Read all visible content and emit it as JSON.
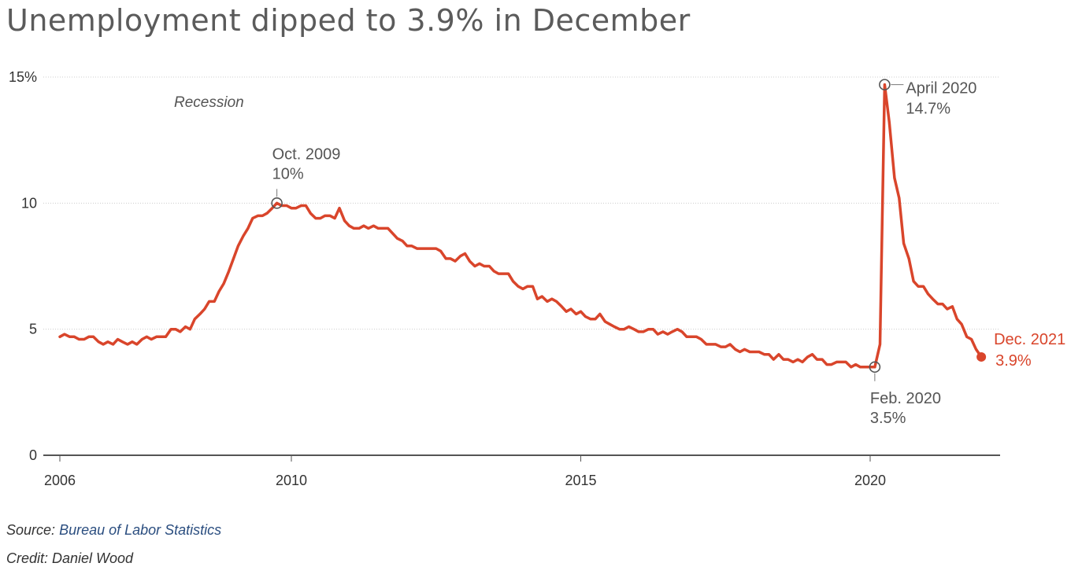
{
  "header": {
    "title": "Unemployment dipped to 3.9% in December"
  },
  "footer": {
    "source_label": "Source:",
    "source_name": "Bureau of Labor Statistics",
    "credit_text": "Credit: Daniel Wood"
  },
  "chart_data": {
    "type": "line",
    "title": "Unemployment dipped to 3.9% in December",
    "xlabel": "",
    "ylabel": "",
    "ylim": [
      0,
      15
    ],
    "xlim": [
      2006,
      2022
    ],
    "y_ticks": [
      {
        "value": 0,
        "label": "0"
      },
      {
        "value": 5,
        "label": "5"
      },
      {
        "value": 10,
        "label": "10"
      },
      {
        "value": 15,
        "label": "15%"
      }
    ],
    "x_ticks": [
      {
        "value": 2006,
        "label": "2006"
      },
      {
        "value": 2010,
        "label": "2010"
      },
      {
        "value": 2015,
        "label": "2015"
      },
      {
        "value": 2020,
        "label": "2020"
      }
    ],
    "grid": true,
    "line_color": "#d9452b",
    "recession_label": "Recession",
    "series": [
      {
        "points": [
          [
            2006.0,
            4.7
          ],
          [
            2006.08,
            4.8
          ],
          [
            2006.17,
            4.7
          ],
          [
            2006.25,
            4.7
          ],
          [
            2006.33,
            4.6
          ],
          [
            2006.42,
            4.6
          ],
          [
            2006.5,
            4.7
          ],
          [
            2006.58,
            4.7
          ],
          [
            2006.67,
            4.5
          ],
          [
            2006.75,
            4.4
          ],
          [
            2006.83,
            4.5
          ],
          [
            2006.92,
            4.4
          ],
          [
            2007.0,
            4.6
          ],
          [
            2007.08,
            4.5
          ],
          [
            2007.17,
            4.4
          ],
          [
            2007.25,
            4.5
          ],
          [
            2007.33,
            4.4
          ],
          [
            2007.42,
            4.6
          ],
          [
            2007.5,
            4.7
          ],
          [
            2007.58,
            4.6
          ],
          [
            2007.67,
            4.7
          ],
          [
            2007.75,
            4.7
          ],
          [
            2007.83,
            4.7
          ],
          [
            2007.92,
            5.0
          ],
          [
            2008.0,
            5.0
          ],
          [
            2008.08,
            4.9
          ],
          [
            2008.17,
            5.1
          ],
          [
            2008.25,
            5.0
          ],
          [
            2008.33,
            5.4
          ],
          [
            2008.42,
            5.6
          ],
          [
            2008.5,
            5.8
          ],
          [
            2008.58,
            6.1
          ],
          [
            2008.67,
            6.1
          ],
          [
            2008.75,
            6.5
          ],
          [
            2008.83,
            6.8
          ],
          [
            2008.92,
            7.3
          ],
          [
            2009.0,
            7.8
          ],
          [
            2009.08,
            8.3
          ],
          [
            2009.17,
            8.7
          ],
          [
            2009.25,
            9.0
          ],
          [
            2009.33,
            9.4
          ],
          [
            2009.42,
            9.5
          ],
          [
            2009.5,
            9.5
          ],
          [
            2009.58,
            9.6
          ],
          [
            2009.67,
            9.8
          ],
          [
            2009.75,
            10.0
          ],
          [
            2009.83,
            9.9
          ],
          [
            2009.92,
            9.9
          ],
          [
            2010.0,
            9.8
          ],
          [
            2010.08,
            9.8
          ],
          [
            2010.17,
            9.9
          ],
          [
            2010.25,
            9.9
          ],
          [
            2010.33,
            9.6
          ],
          [
            2010.42,
            9.4
          ],
          [
            2010.5,
            9.4
          ],
          [
            2010.58,
            9.5
          ],
          [
            2010.67,
            9.5
          ],
          [
            2010.75,
            9.4
          ],
          [
            2010.83,
            9.8
          ],
          [
            2010.92,
            9.3
          ],
          [
            2011.0,
            9.1
          ],
          [
            2011.08,
            9.0
          ],
          [
            2011.17,
            9.0
          ],
          [
            2011.25,
            9.1
          ],
          [
            2011.33,
            9.0
          ],
          [
            2011.42,
            9.1
          ],
          [
            2011.5,
            9.0
          ],
          [
            2011.58,
            9.0
          ],
          [
            2011.67,
            9.0
          ],
          [
            2011.75,
            8.8
          ],
          [
            2011.83,
            8.6
          ],
          [
            2011.92,
            8.5
          ],
          [
            2012.0,
            8.3
          ],
          [
            2012.08,
            8.3
          ],
          [
            2012.17,
            8.2
          ],
          [
            2012.25,
            8.2
          ],
          [
            2012.33,
            8.2
          ],
          [
            2012.42,
            8.2
          ],
          [
            2012.5,
            8.2
          ],
          [
            2012.58,
            8.1
          ],
          [
            2012.67,
            7.8
          ],
          [
            2012.75,
            7.8
          ],
          [
            2012.83,
            7.7
          ],
          [
            2012.92,
            7.9
          ],
          [
            2013.0,
            8.0
          ],
          [
            2013.08,
            7.7
          ],
          [
            2013.17,
            7.5
          ],
          [
            2013.25,
            7.6
          ],
          [
            2013.33,
            7.5
          ],
          [
            2013.42,
            7.5
          ],
          [
            2013.5,
            7.3
          ],
          [
            2013.58,
            7.2
          ],
          [
            2013.67,
            7.2
          ],
          [
            2013.75,
            7.2
          ],
          [
            2013.83,
            6.9
          ],
          [
            2013.92,
            6.7
          ],
          [
            2014.0,
            6.6
          ],
          [
            2014.08,
            6.7
          ],
          [
            2014.17,
            6.7
          ],
          [
            2014.25,
            6.2
          ],
          [
            2014.33,
            6.3
          ],
          [
            2014.42,
            6.1
          ],
          [
            2014.5,
            6.2
          ],
          [
            2014.58,
            6.1
          ],
          [
            2014.67,
            5.9
          ],
          [
            2014.75,
            5.7
          ],
          [
            2014.83,
            5.8
          ],
          [
            2014.92,
            5.6
          ],
          [
            2015.0,
            5.7
          ],
          [
            2015.08,
            5.5
          ],
          [
            2015.17,
            5.4
          ],
          [
            2015.25,
            5.4
          ],
          [
            2015.33,
            5.6
          ],
          [
            2015.42,
            5.3
          ],
          [
            2015.5,
            5.2
          ],
          [
            2015.58,
            5.1
          ],
          [
            2015.67,
            5.0
          ],
          [
            2015.75,
            5.0
          ],
          [
            2015.83,
            5.1
          ],
          [
            2015.92,
            5.0
          ],
          [
            2016.0,
            4.9
          ],
          [
            2016.08,
            4.9
          ],
          [
            2016.17,
            5.0
          ],
          [
            2016.25,
            5.0
          ],
          [
            2016.33,
            4.8
          ],
          [
            2016.42,
            4.9
          ],
          [
            2016.5,
            4.8
          ],
          [
            2016.58,
            4.9
          ],
          [
            2016.67,
            5.0
          ],
          [
            2016.75,
            4.9
          ],
          [
            2016.83,
            4.7
          ],
          [
            2016.92,
            4.7
          ],
          [
            2017.0,
            4.7
          ],
          [
            2017.08,
            4.6
          ],
          [
            2017.17,
            4.4
          ],
          [
            2017.25,
            4.4
          ],
          [
            2017.33,
            4.4
          ],
          [
            2017.42,
            4.3
          ],
          [
            2017.5,
            4.3
          ],
          [
            2017.58,
            4.4
          ],
          [
            2017.67,
            4.2
          ],
          [
            2017.75,
            4.1
          ],
          [
            2017.83,
            4.2
          ],
          [
            2017.92,
            4.1
          ],
          [
            2018.0,
            4.1
          ],
          [
            2018.08,
            4.1
          ],
          [
            2018.17,
            4.0
          ],
          [
            2018.25,
            4.0
          ],
          [
            2018.33,
            3.8
          ],
          [
            2018.42,
            4.0
          ],
          [
            2018.5,
            3.8
          ],
          [
            2018.58,
            3.8
          ],
          [
            2018.67,
            3.7
          ],
          [
            2018.75,
            3.8
          ],
          [
            2018.83,
            3.7
          ],
          [
            2018.92,
            3.9
          ],
          [
            2019.0,
            4.0
          ],
          [
            2019.08,
            3.8
          ],
          [
            2019.17,
            3.8
          ],
          [
            2019.25,
            3.6
          ],
          [
            2019.33,
            3.6
          ],
          [
            2019.42,
            3.7
          ],
          [
            2019.5,
            3.7
          ],
          [
            2019.58,
            3.7
          ],
          [
            2019.67,
            3.5
          ],
          [
            2019.75,
            3.6
          ],
          [
            2019.83,
            3.5
          ],
          [
            2019.92,
            3.5
          ],
          [
            2020.0,
            3.5
          ],
          [
            2020.08,
            3.5
          ],
          [
            2020.17,
            4.4
          ],
          [
            2020.25,
            14.7
          ],
          [
            2020.33,
            13.2
          ],
          [
            2020.42,
            11.0
          ],
          [
            2020.5,
            10.2
          ],
          [
            2020.58,
            8.4
          ],
          [
            2020.67,
            7.8
          ],
          [
            2020.75,
            6.9
          ],
          [
            2020.83,
            6.7
          ],
          [
            2020.92,
            6.7
          ],
          [
            2021.0,
            6.4
          ],
          [
            2021.08,
            6.2
          ],
          [
            2021.17,
            6.0
          ],
          [
            2021.25,
            6.0
          ],
          [
            2021.33,
            5.8
          ],
          [
            2021.42,
            5.9
          ],
          [
            2021.5,
            5.4
          ],
          [
            2021.58,
            5.2
          ],
          [
            2021.67,
            4.7
          ],
          [
            2021.75,
            4.6
          ],
          [
            2021.83,
            4.2
          ],
          [
            2021.92,
            3.9
          ]
        ]
      }
    ],
    "annotations": [
      {
        "x": 2009.75,
        "y": 10.0,
        "label": "Oct. 2009",
        "value_label": "10%",
        "placement": "above",
        "style": "ring"
      },
      {
        "x": 2020.08,
        "y": 3.5,
        "label": "Feb. 2020",
        "value_label": "3.5%",
        "placement": "below",
        "style": "ring"
      },
      {
        "x": 2020.25,
        "y": 14.7,
        "label": "April 2020",
        "value_label": "14.7%",
        "placement": "right",
        "style": "ring"
      },
      {
        "x": 2021.92,
        "y": 3.9,
        "label": "Dec. 2021",
        "value_label": "3.9%",
        "placement": "right",
        "style": "dot",
        "color": "#d9452b"
      }
    ]
  }
}
